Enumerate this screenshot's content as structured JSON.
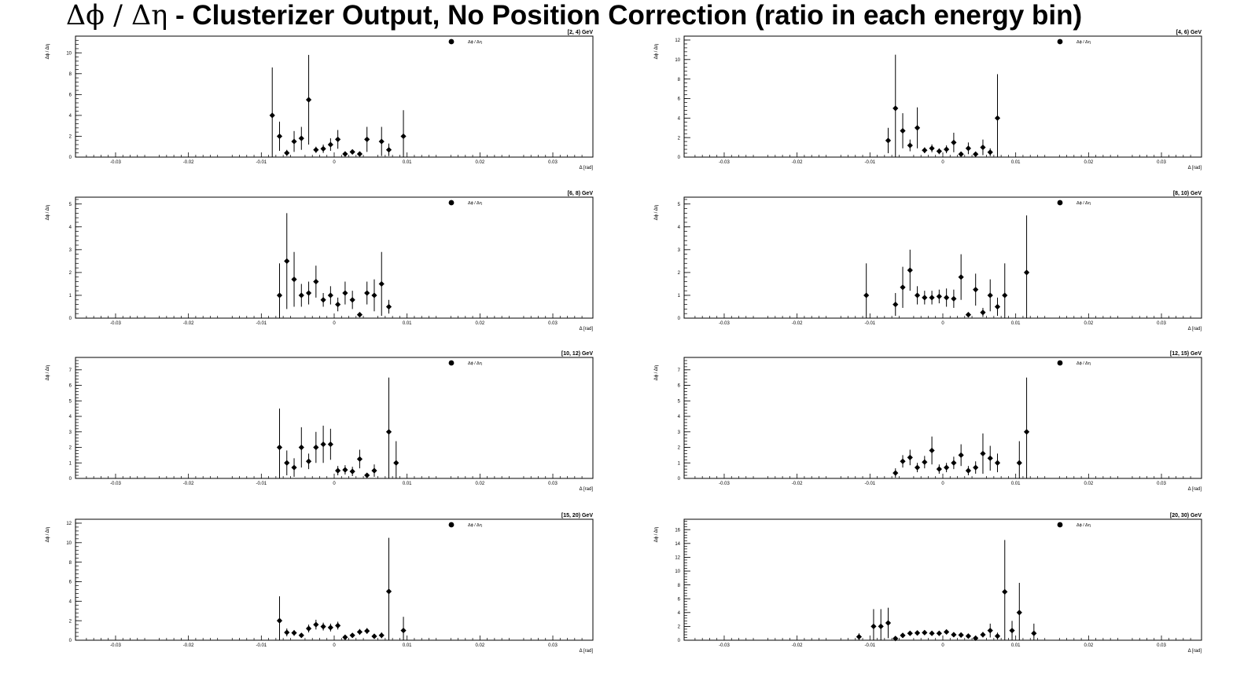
{
  "figure": {
    "title_prefix": "Δϕ / Δη",
    "title_rest": "  -  Clusterizer Output, No Position Correction  (ratio in each energy bin)"
  },
  "axes_common": {
    "xlabel": "Δ  [rad]",
    "ylabel": "Δϕ / Δη",
    "legend_label": "Δϕ / Δη",
    "xtick_labels": [
      "-0.03",
      "-0.02",
      "-0.01",
      "0",
      "0.01",
      "0.02",
      "0.03"
    ],
    "xlim": [
      -0.0355,
      0.0355
    ],
    "marker_color": "#000000"
  },
  "chart_data": [
    {
      "type": "scatter",
      "panel_label": "[2, 4) GeV",
      "ylim": [
        0,
        11.6
      ],
      "yticks": [
        0,
        2,
        4,
        6,
        8,
        10
      ],
      "x": [
        -0.0085,
        -0.0075,
        -0.0065,
        -0.0055,
        -0.0045,
        -0.0035,
        -0.0025,
        -0.0015,
        -0.0005,
        0.0005,
        0.0015,
        0.0025,
        0.0035,
        0.0045,
        0.0065,
        0.0075,
        0.0095
      ],
      "y": [
        4.0,
        2.0,
        0.4,
        1.5,
        1.8,
        5.5,
        0.7,
        0.8,
        1.2,
        1.7,
        0.3,
        0.5,
        0.3,
        1.7,
        1.5,
        0.7,
        2.0
      ],
      "err": [
        4.6,
        1.4,
        0.3,
        1.0,
        1.1,
        4.3,
        0.3,
        0.4,
        0.6,
        0.9,
        0.2,
        0.2,
        0.2,
        1.2,
        1.4,
        0.6,
        2.5
      ]
    },
    {
      "type": "scatter",
      "panel_label": "[4, 6) GeV",
      "ylim": [
        0,
        12.4
      ],
      "yticks": [
        0,
        2,
        4,
        6,
        8,
        10,
        12
      ],
      "x": [
        -0.0075,
        -0.0065,
        -0.0055,
        -0.0045,
        -0.0035,
        -0.0025,
        -0.0015,
        -0.0005,
        0.0005,
        0.0015,
        0.0025,
        0.0035,
        0.0045,
        0.0055,
        0.0065,
        0.0075
      ],
      "y": [
        1.7,
        5.0,
        2.7,
        1.2,
        3.0,
        0.7,
        0.9,
        0.6,
        0.8,
        1.5,
        0.3,
        0.9,
        0.3,
        1.0,
        0.5,
        4.0
      ],
      "err": [
        1.3,
        5.5,
        1.8,
        0.6,
        2.1,
        0.3,
        0.4,
        0.3,
        0.4,
        1.0,
        0.2,
        0.6,
        0.2,
        0.8,
        0.4,
        4.5
      ]
    },
    {
      "type": "scatter",
      "panel_label": "[6, 8) GeV",
      "ylim": [
        0,
        5.3
      ],
      "yticks": [
        0,
        1,
        2,
        3,
        4,
        5
      ],
      "x": [
        -0.0075,
        -0.0065,
        -0.0055,
        -0.0045,
        -0.0035,
        -0.0025,
        -0.0015,
        -0.0005,
        0.0005,
        0.0015,
        0.0025,
        0.0035,
        0.0045,
        0.0055,
        0.0065,
        0.0075
      ],
      "y": [
        1.0,
        2.5,
        1.7,
        1.0,
        1.1,
        1.6,
        0.8,
        1.0,
        0.6,
        1.1,
        0.8,
        0.15,
        1.1,
        1.0,
        1.5,
        0.5
      ],
      "err": [
        1.4,
        2.1,
        1.2,
        0.5,
        0.5,
        0.7,
        0.3,
        0.4,
        0.3,
        0.5,
        0.4,
        0.1,
        0.5,
        0.7,
        1.4,
        0.3
      ]
    },
    {
      "type": "scatter",
      "panel_label": "[8, 10) GeV",
      "ylim": [
        0,
        5.3
      ],
      "yticks": [
        0,
        1,
        2,
        3,
        4,
        5
      ],
      "x": [
        -0.0105,
        -0.0065,
        -0.0055,
        -0.0045,
        -0.0035,
        -0.0025,
        -0.0015,
        -0.0005,
        0.0005,
        0.0015,
        0.0025,
        0.0035,
        0.0045,
        0.0055,
        0.0065,
        0.0075,
        0.0085,
        0.0115
      ],
      "y": [
        1.0,
        0.6,
        1.35,
        2.1,
        1.0,
        0.9,
        0.9,
        0.95,
        0.9,
        0.85,
        1.8,
        0.15,
        1.25,
        0.25,
        1.0,
        0.5,
        1.0,
        2.0
      ],
      "err": [
        1.4,
        0.5,
        0.9,
        0.9,
        0.4,
        0.3,
        0.3,
        0.3,
        0.4,
        0.4,
        1.0,
        0.1,
        0.7,
        0.2,
        0.7,
        0.4,
        1.4,
        2.5
      ]
    },
    {
      "type": "scatter",
      "panel_label": "[10, 12) GeV",
      "ylim": [
        0,
        7.8
      ],
      "yticks": [
        0,
        1,
        2,
        3,
        4,
        5,
        6,
        7
      ],
      "x": [
        -0.0075,
        -0.0065,
        -0.0055,
        -0.0045,
        -0.0035,
        -0.0025,
        -0.0015,
        -0.0005,
        0.0005,
        0.0015,
        0.0025,
        0.0035,
        0.0045,
        0.0055,
        0.0075,
        0.0085
      ],
      "y": [
        2.0,
        1.0,
        0.7,
        2.0,
        1.1,
        2.0,
        2.2,
        2.2,
        0.5,
        0.55,
        0.45,
        1.25,
        0.2,
        0.5,
        3.0,
        1.0
      ],
      "err": [
        2.5,
        0.8,
        0.6,
        1.3,
        0.5,
        1.0,
        1.2,
        1.0,
        0.3,
        0.3,
        0.3,
        0.6,
        0.15,
        0.4,
        3.5,
        1.4
      ]
    },
    {
      "type": "scatter",
      "panel_label": "[12, 15) GeV",
      "ylim": [
        0,
        7.8
      ],
      "yticks": [
        0,
        1,
        2,
        3,
        4,
        5,
        6,
        7
      ],
      "x": [
        -0.0065,
        -0.0055,
        -0.0045,
        -0.0035,
        -0.0025,
        -0.0015,
        -0.0005,
        0.0005,
        0.0015,
        0.0025,
        0.0035,
        0.0045,
        0.0055,
        0.0065,
        0.0075,
        0.0105,
        0.0115
      ],
      "y": [
        0.35,
        1.1,
        1.35,
        0.7,
        1.05,
        1.8,
        0.6,
        0.7,
        1.0,
        1.5,
        0.5,
        0.7,
        1.6,
        1.3,
        1.0,
        1.0,
        3.0
      ],
      "err": [
        0.3,
        0.4,
        0.5,
        0.3,
        0.4,
        0.9,
        0.3,
        0.3,
        0.4,
        0.7,
        0.3,
        0.4,
        1.3,
        0.8,
        0.6,
        1.4,
        3.5
      ]
    },
    {
      "type": "scatter",
      "panel_label": "[15, 20) GeV",
      "ylim": [
        0,
        12.4
      ],
      "yticks": [
        0,
        2,
        4,
        6,
        8,
        10,
        12
      ],
      "x": [
        -0.0075,
        -0.0065,
        -0.0055,
        -0.0045,
        -0.0035,
        -0.0025,
        -0.0015,
        -0.0005,
        0.0005,
        0.0015,
        0.0025,
        0.0035,
        0.0045,
        0.0055,
        0.0065,
        0.0075,
        0.0095
      ],
      "y": [
        2.0,
        0.8,
        0.75,
        0.5,
        1.2,
        1.6,
        1.4,
        1.3,
        1.5,
        0.3,
        0.5,
        0.85,
        0.95,
        0.4,
        0.5,
        5.0,
        1.0
      ],
      "err": [
        2.5,
        0.4,
        0.3,
        0.2,
        0.4,
        0.5,
        0.4,
        0.4,
        0.4,
        0.2,
        0.2,
        0.3,
        0.3,
        0.2,
        0.3,
        5.5,
        1.4
      ]
    },
    {
      "type": "scatter",
      "panel_label": "[20, 30) GeV",
      "ylim": [
        0,
        17.5
      ],
      "yticks": [
        0,
        2,
        4,
        6,
        8,
        10,
        12,
        14,
        16
      ],
      "x": [
        -0.0115,
        -0.0095,
        -0.0085,
        -0.0075,
        -0.0065,
        -0.0055,
        -0.0045,
        -0.0035,
        -0.0025,
        -0.0015,
        -0.0005,
        0.0005,
        0.0015,
        0.0025,
        0.0035,
        0.0045,
        0.0055,
        0.0065,
        0.0075,
        0.0085,
        0.0095,
        0.0105,
        0.0125
      ],
      "y": [
        0.5,
        2.0,
        2.0,
        2.5,
        0.25,
        0.7,
        1.0,
        1.05,
        1.1,
        1.0,
        1.0,
        1.2,
        0.8,
        0.75,
        0.6,
        0.3,
        0.8,
        1.4,
        0.6,
        7.0,
        1.4,
        4.0,
        1.0
      ],
      "err": [
        0.5,
        2.5,
        2.5,
        2.2,
        0.2,
        0.3,
        0.3,
        0.3,
        0.3,
        0.3,
        0.3,
        0.3,
        0.3,
        0.3,
        0.3,
        0.2,
        0.4,
        1.0,
        0.5,
        7.5,
        1.4,
        4.3,
        1.4
      ]
    }
  ]
}
